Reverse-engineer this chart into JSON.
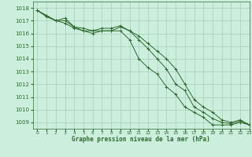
{
  "title": "Graphe pression niveau de la mer (hPa)",
  "bg_color": "#cceedd",
  "grid_color": "#aaccbb",
  "line_color": "#2d6a2d",
  "marker_color": "#2d6a2d",
  "xlim": [
    -0.5,
    23
  ],
  "ylim": [
    1008.5,
    1018.5
  ],
  "xticks": [
    0,
    1,
    2,
    3,
    4,
    5,
    6,
    7,
    8,
    9,
    10,
    11,
    12,
    13,
    14,
    15,
    16,
    17,
    18,
    19,
    20,
    21,
    22,
    23
  ],
  "yticks": [
    1009,
    1010,
    1011,
    1012,
    1013,
    1014,
    1015,
    1016,
    1017,
    1018
  ],
  "series": [
    [
      1017.8,
      1017.4,
      1017.0,
      1017.0,
      1016.5,
      1016.2,
      1016.2,
      1016.2,
      1016.2,
      1016.2,
      1015.5,
      1014.0,
      1013.3,
      1012.8,
      1011.8,
      1011.2,
      1010.2,
      1009.8,
      1009.4,
      1008.8,
      1008.8,
      1008.8,
      1009.0,
      1008.8
    ],
    [
      1017.8,
      1017.3,
      1017.0,
      1016.8,
      1016.4,
      1016.2,
      1016.0,
      1016.2,
      1016.2,
      1016.5,
      1016.2,
      1015.5,
      1014.8,
      1014.0,
      1013.2,
      1012.0,
      1011.5,
      1010.2,
      1009.8,
      1009.3,
      1009.0,
      1008.9,
      1009.1,
      1008.8
    ],
    [
      1017.8,
      1017.4,
      1017.0,
      1017.2,
      1016.5,
      1016.4,
      1016.2,
      1016.4,
      1016.4,
      1016.6,
      1016.2,
      1015.8,
      1015.2,
      1014.6,
      1014.0,
      1013.2,
      1012.0,
      1010.8,
      1010.2,
      1009.8,
      1009.2,
      1009.0,
      1009.2,
      1008.8
    ]
  ]
}
